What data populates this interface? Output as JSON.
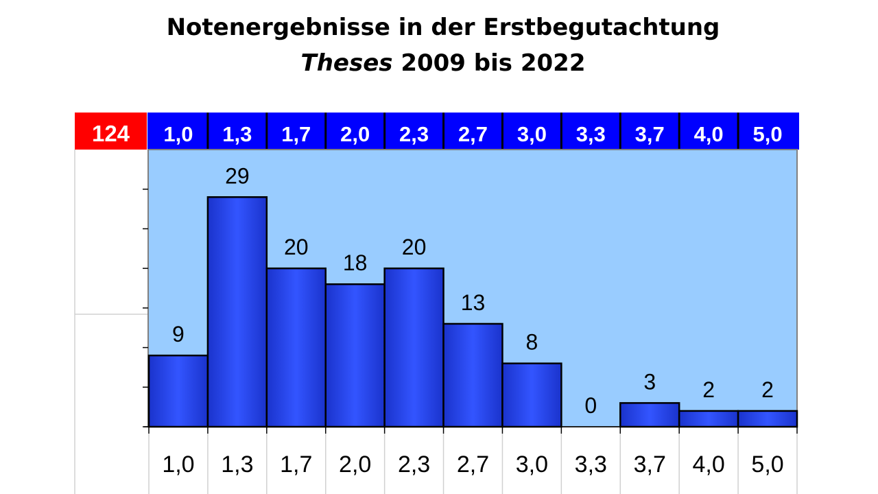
{
  "title": "Notenergebnisse in der Erstbegutachtung",
  "subtitle_italic": "Theses",
  "subtitle_rest": " 2009 bis 2022",
  "total": "124",
  "colors": {
    "total_cell": "#ff0000",
    "header_bar": "#0000ff",
    "plot_bg": "#99ccff",
    "bar_fill": "#2244ee"
  },
  "chart_data": {
    "type": "bar",
    "title": "Notenergebnisse in der Erstbegutachtung Theses 2009 bis 2022",
    "categories": [
      "1,0",
      "1,3",
      "1,7",
      "2,0",
      "2,3",
      "2,7",
      "3,0",
      "3,3",
      "3,7",
      "4,0",
      "5,0"
    ],
    "values": [
      9,
      29,
      20,
      18,
      20,
      13,
      8,
      0,
      3,
      2,
      2
    ],
    "header_labels": [
      "1,0",
      "1,3",
      "1,7",
      "2,0",
      "2,3",
      "2,7",
      "3,0",
      "3,3",
      "3,7",
      "4,0",
      "5,0"
    ],
    "ylim": [
      0,
      35
    ],
    "grid": false,
    "legend": "none"
  }
}
